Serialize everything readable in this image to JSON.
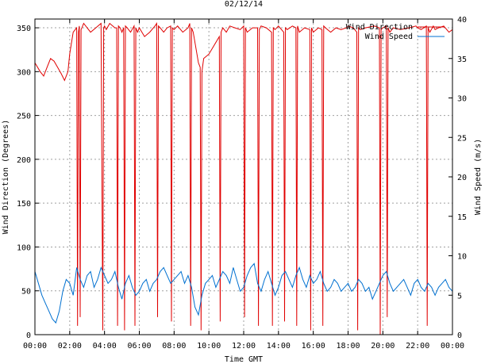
{
  "chart_data": {
    "type": "line",
    "title": "02/12/14",
    "xlabel": "Time GMT",
    "ylabel_left": "Wind Direction (Degrees)",
    "ylabel_right": "Wind Speed (m/s)",
    "x_range_hours": [
      0,
      24
    ],
    "x_ticks": [
      {
        "hour": 0,
        "label": "00:00"
      },
      {
        "hour": 2,
        "label": "02:00"
      },
      {
        "hour": 4,
        "label": "04:00"
      },
      {
        "hour": 6,
        "label": "06:00"
      },
      {
        "hour": 8,
        "label": "08:00"
      },
      {
        "hour": 10,
        "label": "10:00"
      },
      {
        "hour": 12,
        "label": "12:00"
      },
      {
        "hour": 14,
        "label": "14:00"
      },
      {
        "hour": 16,
        "label": "16:00"
      },
      {
        "hour": 18,
        "label": "18:00"
      },
      {
        "hour": 20,
        "label": "20:00"
      },
      {
        "hour": 22,
        "label": "22:00"
      },
      {
        "hour": 24,
        "label": "00:00"
      }
    ],
    "y_left_range": [
      0,
      360
    ],
    "y_left_ticks": [
      0,
      50,
      100,
      150,
      200,
      250,
      300,
      350
    ],
    "y_right_range": [
      0,
      40
    ],
    "y_right_ticks": [
      0,
      5,
      10,
      15,
      20,
      25,
      30,
      35,
      40
    ],
    "grid": true,
    "legend_position": "top-right",
    "series": [
      {
        "name": "Wind Direction",
        "axis": "left",
        "color": "#e00000",
        "x": [
          0.0,
          0.3,
          0.5,
          0.7,
          0.9,
          1.1,
          1.3,
          1.5,
          1.7,
          1.9,
          2.0,
          2.2,
          2.4,
          2.45,
          2.5,
          2.55,
          2.6,
          2.65,
          2.7,
          2.8,
          3.0,
          3.2,
          3.5,
          3.8,
          3.9,
          3.95,
          4.0,
          4.1,
          4.3,
          4.6,
          4.7,
          4.75,
          4.8,
          4.9,
          5.0,
          5.1,
          5.15,
          5.2,
          5.3,
          5.5,
          5.7,
          5.75,
          5.8,
          5.9,
          6.0,
          6.3,
          6.6,
          6.9,
          7.0,
          7.05,
          7.1,
          7.2,
          7.4,
          7.6,
          7.8,
          7.85,
          7.9,
          8.0,
          8.2,
          8.5,
          8.8,
          8.9,
          8.95,
          9.0,
          9.1,
          9.4,
          9.5,
          9.55,
          9.6,
          9.7,
          10.0,
          10.3,
          10.6,
          10.65,
          10.7,
          10.8,
          11.0,
          11.2,
          11.5,
          11.8,
          12.0,
          12.05,
          12.1,
          12.2,
          12.5,
          12.8,
          12.85,
          12.9,
          13.0,
          13.3,
          13.6,
          13.65,
          13.7,
          13.8,
          14.0,
          14.3,
          14.35,
          14.4,
          14.5,
          14.8,
          15.0,
          15.05,
          15.1,
          15.2,
          15.5,
          15.8,
          15.85,
          15.9,
          16.0,
          16.3,
          16.5,
          16.55,
          16.6,
          16.7,
          17.0,
          17.3,
          17.6,
          17.9,
          18.0,
          18.3,
          18.5,
          18.55,
          18.6,
          18.7,
          19.0,
          19.5,
          19.8,
          19.85,
          19.9,
          20.0,
          20.2,
          20.25,
          20.3,
          20.4,
          20.6,
          21.0,
          21.5,
          21.9,
          22.0,
          22.2,
          22.5,
          22.55,
          22.6,
          22.7,
          22.9,
          23.0,
          23.2,
          23.5,
          23.8,
          24.0
        ],
        "values": [
          310,
          300,
          295,
          305,
          315,
          312,
          305,
          298,
          290,
          300,
          320,
          345,
          350,
          10,
          345,
          352,
          20,
          348,
          350,
          355,
          350,
          345,
          350,
          355,
          5,
          350,
          352,
          348,
          355,
          350,
          350,
          10,
          352,
          350,
          345,
          350,
          5,
          352,
          350,
          345,
          352,
          10,
          350,
          345,
          350,
          340,
          345,
          352,
          355,
          20,
          352,
          350,
          345,
          350,
          352,
          15,
          350,
          348,
          352,
          345,
          350,
          355,
          10,
          350,
          345,
          310,
          305,
          5,
          300,
          315,
          320,
          330,
          340,
          15,
          345,
          350,
          345,
          352,
          350,
          348,
          352,
          20,
          350,
          345,
          350,
          350,
          10,
          348,
          352,
          350,
          345,
          10,
          350,
          348,
          352,
          345,
          15,
          350,
          348,
          352,
          350,
          10,
          352,
          345,
          350,
          348,
          5,
          350,
          345,
          350,
          348,
          10,
          352,
          350,
          345,
          350,
          348,
          350,
          352,
          350,
          345,
          5,
          350,
          348,
          350,
          352,
          350,
          0,
          348,
          350,
          352,
          20,
          350,
          345,
          350,
          348,
          350,
          352,
          350,
          348,
          352,
          10,
          350,
          345,
          352,
          348,
          350,
          352,
          345,
          348
        ]
      },
      {
        "name": "Wind Speed",
        "axis": "right",
        "color": "#0070d0",
        "x": [
          0.0,
          0.2,
          0.4,
          0.6,
          0.8,
          1.0,
          1.2,
          1.4,
          1.6,
          1.8,
          2.0,
          2.2,
          2.4,
          2.6,
          2.8,
          3.0,
          3.2,
          3.4,
          3.6,
          3.8,
          4.0,
          4.2,
          4.4,
          4.6,
          4.8,
          5.0,
          5.2,
          5.4,
          5.6,
          5.8,
          6.0,
          6.2,
          6.4,
          6.6,
          6.8,
          7.0,
          7.2,
          7.4,
          7.6,
          7.8,
          8.0,
          8.2,
          8.4,
          8.6,
          8.8,
          9.0,
          9.2,
          9.4,
          9.6,
          9.8,
          10.0,
          10.2,
          10.4,
          10.6,
          10.8,
          11.0,
          11.2,
          11.4,
          11.6,
          11.8,
          12.0,
          12.2,
          12.4,
          12.6,
          12.8,
          13.0,
          13.2,
          13.4,
          13.6,
          13.8,
          14.0,
          14.2,
          14.4,
          14.6,
          14.8,
          15.0,
          15.2,
          15.4,
          15.6,
          15.8,
          16.0,
          16.2,
          16.4,
          16.6,
          16.8,
          17.0,
          17.2,
          17.4,
          17.6,
          17.8,
          18.0,
          18.2,
          18.4,
          18.6,
          18.8,
          19.0,
          19.2,
          19.4,
          19.6,
          19.8,
          20.0,
          20.2,
          20.4,
          20.6,
          20.8,
          21.0,
          21.2,
          21.4,
          21.6,
          21.8,
          22.0,
          22.2,
          22.4,
          22.6,
          22.8,
          23.0,
          23.2,
          23.4,
          23.6,
          23.8,
          24.0
        ],
        "values": [
          8.0,
          6.5,
          5.0,
          4.0,
          3.0,
          2.0,
          1.5,
          3.0,
          5.5,
          7.0,
          6.5,
          5.0,
          8.5,
          7.0,
          6.0,
          7.5,
          8.0,
          6.0,
          7.0,
          8.5,
          7.5,
          6.5,
          7.0,
          8.0,
          6.0,
          4.5,
          6.5,
          7.5,
          6.0,
          5.0,
          5.5,
          6.5,
          7.0,
          5.5,
          6.5,
          7.0,
          8.0,
          8.5,
          7.5,
          6.5,
          7.0,
          7.5,
          8.0,
          6.5,
          7.5,
          6.0,
          3.5,
          2.5,
          5.0,
          6.5,
          7.0,
          7.5,
          6.0,
          7.0,
          8.0,
          7.5,
          6.5,
          8.5,
          7.0,
          5.5,
          6.0,
          7.5,
          8.5,
          9.0,
          6.5,
          5.5,
          7.0,
          8.0,
          6.5,
          5.0,
          6.0,
          7.5,
          8.0,
          7.0,
          6.0,
          7.5,
          8.5,
          7.0,
          6.0,
          7.5,
          6.5,
          7.0,
          8.0,
          6.5,
          5.5,
          6.0,
          7.0,
          6.5,
          5.5,
          6.0,
          6.5,
          5.5,
          6.0,
          7.0,
          6.5,
          5.5,
          6.0,
          4.5,
          5.5,
          6.5,
          7.5,
          8.0,
          6.5,
          5.5,
          6.0,
          6.5,
          7.0,
          6.0,
          5.0,
          6.5,
          7.0,
          6.0,
          5.5,
          6.5,
          6.0,
          5.0,
          6.0,
          6.5,
          7.0,
          6.0,
          5.5
        ]
      }
    ]
  }
}
